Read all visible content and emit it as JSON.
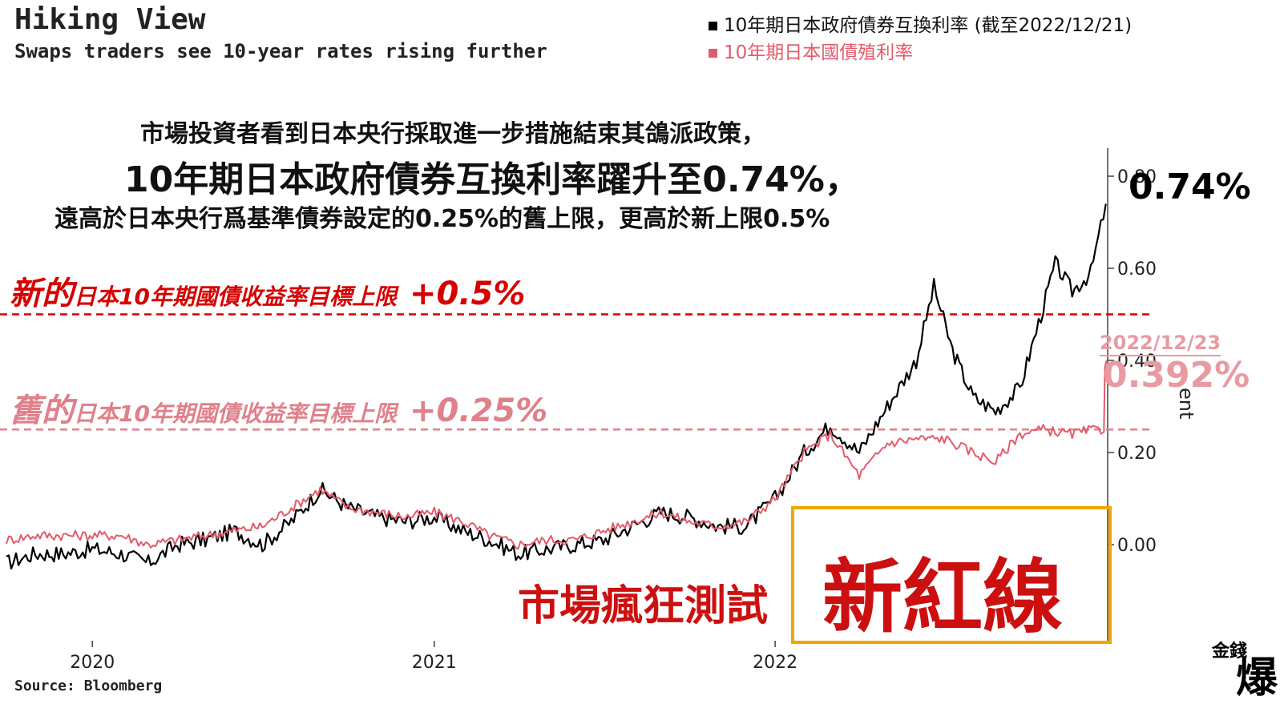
{
  "header": {
    "title": "Hiking View",
    "subtitle": "Swaps traders see 10-year rates rising further"
  },
  "legend": [
    {
      "label": "10年期日本政府債券互換利率 (截至2022/12/21)",
      "color": "#000000"
    },
    {
      "label": "10年期日本國債殖利率",
      "color": "#e35b6a"
    }
  ],
  "annotations": {
    "line1": "市場投資者看到日本央行採取進一步措施結束其鴿派政策，",
    "line2": "10年期日本政府債券互換利率躍升至0.74%，",
    "line3": "遠高於日本央行爲基準債券設定的0.25%的舊上限，更高於新上限0.5%",
    "swap_latest": "0.74%",
    "new_limit_big": "新的",
    "new_limit_small": "日本10年期國債收益率目標上限",
    "new_limit_value": "+0.5%",
    "old_limit_big": "舊的",
    "old_limit_small": "日本10年期國債收益率目標上限",
    "old_limit_value": "+0.25%",
    "yield_date": "2022/12/23",
    "yield_value": "0.392%",
    "caption_left": "市場瘋狂測試",
    "caption_right": "新紅線"
  },
  "source": "Source: Bloomberg",
  "ylabel_fragment": "ent",
  "logo": {
    "small": "金錢",
    "big": "爆"
  },
  "colors": {
    "swap": "#000000",
    "jgb": "#e35b6a",
    "new_limit": "#d60000",
    "old_limit": "#e0808a",
    "box": "#f0a800"
  },
  "chart_data": {
    "type": "line",
    "x_axis": {
      "ticks": [
        "2020",
        "2021",
        "2022"
      ],
      "range": [
        "2019-10-01",
        "2022-12-23"
      ]
    },
    "y_axis": {
      "ticks": [
        "0.00",
        "0.20",
        "0.40",
        "0.60",
        "0.80"
      ],
      "range": [
        -0.1,
        0.85
      ]
    },
    "reference_lines": [
      {
        "value": 0.5,
        "label": "新的日本10年期國債收益率目標上限 +0.5%",
        "style": "dashed",
        "color": "#d60000"
      },
      {
        "value": 0.25,
        "label": "舊的日本10年期國債收益率目標上限 +0.25%",
        "style": "dashed",
        "color": "#e0808a"
      }
    ],
    "series": [
      {
        "name": "10年期日本政府債券互換利率 (截至2022/12/21)",
        "color": "#000000",
        "points": [
          [
            "2019-10-01",
            -0.04
          ],
          [
            "2019-11-01",
            -0.02
          ],
          [
            "2019-12-01",
            -0.02
          ],
          [
            "2020-01-01",
            -0.01
          ],
          [
            "2020-02-01",
            -0.02
          ],
          [
            "2020-03-01",
            -0.04
          ],
          [
            "2020-04-01",
            0.0
          ],
          [
            "2020-05-01",
            0.01
          ],
          [
            "2020-06-01",
            0.03
          ],
          [
            "2020-07-01",
            0.0
          ],
          [
            "2020-08-01",
            0.05
          ],
          [
            "2020-09-01",
            0.12
          ],
          [
            "2020-10-01",
            0.08
          ],
          [
            "2020-11-01",
            0.06
          ],
          [
            "2020-12-01",
            0.05
          ],
          [
            "2021-01-01",
            0.06
          ],
          [
            "2021-02-01",
            0.03
          ],
          [
            "2021-03-01",
            0.01
          ],
          [
            "2021-04-01",
            -0.02
          ],
          [
            "2021-05-01",
            -0.01
          ],
          [
            "2021-06-01",
            0.0
          ],
          [
            "2021-07-01",
            0.01
          ],
          [
            "2021-08-01",
            0.04
          ],
          [
            "2021-09-01",
            0.07
          ],
          [
            "2021-10-01",
            0.06
          ],
          [
            "2021-11-01",
            0.04
          ],
          [
            "2021-12-01",
            0.04
          ],
          [
            "2022-01-01",
            0.1
          ],
          [
            "2022-02-01",
            0.2
          ],
          [
            "2022-03-01",
            0.26
          ],
          [
            "2022-04-01",
            0.2
          ],
          [
            "2022-05-01",
            0.3
          ],
          [
            "2022-06-01",
            0.4
          ],
          [
            "2022-06-20",
            0.56
          ],
          [
            "2022-07-10",
            0.42
          ],
          [
            "2022-08-01",
            0.32
          ],
          [
            "2022-08-25",
            0.29
          ],
          [
            "2022-09-20",
            0.34
          ],
          [
            "2022-10-10",
            0.48
          ],
          [
            "2022-10-28",
            0.61
          ],
          [
            "2022-11-15",
            0.55
          ],
          [
            "2022-12-05",
            0.59
          ],
          [
            "2022-12-21",
            0.74
          ]
        ]
      },
      {
        "name": "10年期日本國債殖利率",
        "color": "#e35b6a",
        "points": [
          [
            "2019-10-01",
            0.01
          ],
          [
            "2019-11-01",
            0.02
          ],
          [
            "2019-12-01",
            0.02
          ],
          [
            "2020-01-01",
            0.02
          ],
          [
            "2020-02-01",
            0.02
          ],
          [
            "2020-03-01",
            0.0
          ],
          [
            "2020-04-01",
            0.01
          ],
          [
            "2020-05-01",
            0.02
          ],
          [
            "2020-06-01",
            0.03
          ],
          [
            "2020-07-01",
            0.04
          ],
          [
            "2020-08-01",
            0.08
          ],
          [
            "2020-09-01",
            0.12
          ],
          [
            "2020-10-01",
            0.08
          ],
          [
            "2020-11-01",
            0.07
          ],
          [
            "2020-12-01",
            0.06
          ],
          [
            "2021-01-01",
            0.07
          ],
          [
            "2021-02-01",
            0.05
          ],
          [
            "2021-03-01",
            0.02
          ],
          [
            "2021-04-01",
            0.0
          ],
          [
            "2021-05-01",
            0.01
          ],
          [
            "2021-06-01",
            0.01
          ],
          [
            "2021-07-01",
            0.03
          ],
          [
            "2021-08-01",
            0.05
          ],
          [
            "2021-09-01",
            0.07
          ],
          [
            "2021-10-01",
            0.05
          ],
          [
            "2021-11-01",
            0.04
          ],
          [
            "2021-12-01",
            0.05
          ],
          [
            "2022-01-01",
            0.1
          ],
          [
            "2022-02-01",
            0.2
          ],
          [
            "2022-03-01",
            0.24
          ],
          [
            "2022-04-01",
            0.15
          ],
          [
            "2022-05-01",
            0.22
          ],
          [
            "2022-06-01",
            0.23
          ],
          [
            "2022-07-01",
            0.23
          ],
          [
            "2022-08-01",
            0.2
          ],
          [
            "2022-08-25",
            0.18
          ],
          [
            "2022-09-20",
            0.24
          ],
          [
            "2022-10-15",
            0.25
          ],
          [
            "2022-11-15",
            0.24
          ],
          [
            "2022-12-10",
            0.25
          ],
          [
            "2022-12-19",
            0.25
          ],
          [
            "2022-12-20",
            0.39
          ],
          [
            "2022-12-23",
            0.392
          ]
        ]
      }
    ]
  }
}
